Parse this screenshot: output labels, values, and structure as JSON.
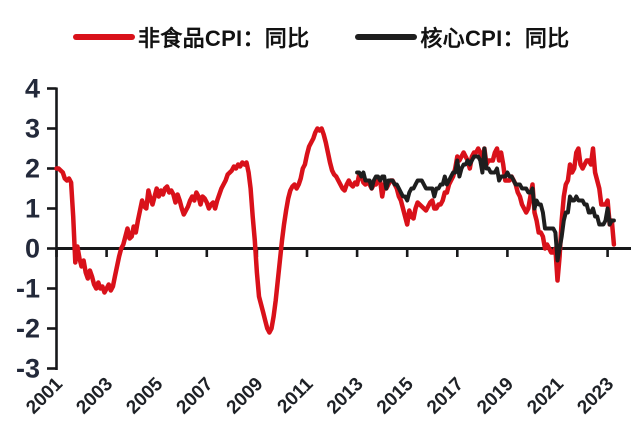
{
  "legend": {
    "position": "top",
    "items": [
      {
        "label": "非食品CPI：同比",
        "color": "#d9111a"
      },
      {
        "label": "核心CPI：同比",
        "color": "#1e1e1e"
      }
    ]
  },
  "chart_data": {
    "type": "line",
    "title": "",
    "xlabel": "",
    "ylabel": "",
    "grid": false,
    "legend_position": "top",
    "x_axis": {
      "tick_years": [
        2001,
        2003,
        2005,
        2007,
        2009,
        2011,
        2013,
        2015,
        2017,
        2019,
        2021,
        2023
      ],
      "label_rotation_deg": -45,
      "min": 2001.0,
      "max": 2023.4
    },
    "y_axis": {
      "ticks": [
        4,
        3,
        2,
        1,
        0,
        -1,
        -2,
        -3
      ],
      "min": -3,
      "max": 4,
      "zero_line_is_x_axis": true
    },
    "colors": {
      "axis": "#17181a",
      "y_tick_label": "#23293a",
      "x_tick_label": "#1e2126"
    },
    "series": [
      {
        "name": "非食品CPI：同比",
        "color": "#d9111a",
        "frequency": "monthly",
        "start": "2001-01",
        "end": "2023-04",
        "values": [
          2.0,
          2.0,
          1.95,
          1.9,
          1.75,
          1.7,
          1.75,
          1.65,
          0.8,
          -0.35,
          0.05,
          -0.25,
          -0.45,
          -0.3,
          -0.6,
          -0.75,
          -0.55,
          -0.7,
          -0.9,
          -1.0,
          -0.85,
          -1.0,
          -0.95,
          -1.1,
          -1.0,
          -0.9,
          -1.05,
          -0.95,
          -0.7,
          -0.45,
          -0.2,
          0.0,
          0.1,
          0.3,
          0.5,
          0.25,
          0.3,
          0.55,
          0.4,
          0.7,
          0.95,
          1.2,
          1.05,
          1.0,
          1.45,
          1.25,
          1.1,
          1.3,
          1.5,
          1.3,
          1.45,
          1.35,
          1.5,
          1.55,
          1.4,
          1.45,
          1.35,
          1.15,
          1.35,
          1.2,
          1.0,
          0.85,
          0.95,
          1.05,
          1.2,
          1.3,
          1.2,
          1.4,
          1.3,
          1.1,
          1.3,
          1.25,
          1.15,
          1.0,
          1.1,
          1.15,
          1.0,
          1.2,
          1.35,
          1.5,
          1.6,
          1.7,
          1.85,
          1.9,
          1.95,
          2.05,
          2.0,
          2.1,
          2.05,
          2.15,
          2.1,
          2.15,
          1.9,
          1.5,
          0.8,
          0.2,
          -0.6,
          -1.2,
          -1.4,
          -1.6,
          -1.8,
          -2.0,
          -2.1,
          -2.0,
          -1.7,
          -1.3,
          -0.8,
          -0.3,
          0.2,
          0.6,
          0.95,
          1.25,
          1.45,
          1.55,
          1.6,
          1.5,
          1.6,
          1.75,
          2.0,
          2.1,
          2.35,
          2.55,
          2.65,
          2.75,
          2.9,
          3.0,
          2.95,
          3.0,
          2.85,
          2.65,
          2.4,
          2.15,
          1.95,
          1.85,
          1.8,
          1.7,
          1.6,
          1.5,
          1.45,
          1.6,
          1.7,
          1.6,
          1.55,
          1.65,
          1.6,
          1.85,
          1.8,
          1.65,
          1.6,
          1.65,
          1.6,
          1.5,
          1.6,
          1.6,
          1.75,
          1.7,
          1.3,
          1.6,
          1.5,
          1.6,
          1.7,
          1.7,
          1.6,
          1.5,
          1.3,
          1.2,
          1.0,
          0.8,
          0.6,
          0.95,
          0.8,
          0.75,
          1.0,
          1.15,
          1.1,
          1.05,
          1.0,
          0.95,
          1.05,
          1.15,
          1.2,
          1.0,
          1.0,
          1.1,
          1.1,
          1.2,
          1.4,
          1.4,
          1.6,
          1.7,
          1.8,
          2.0,
          2.3,
          2.2,
          2.3,
          2.4,
          2.3,
          2.2,
          2.0,
          2.3,
          2.4,
          2.4,
          2.5,
          2.4,
          2.0,
          2.5,
          2.1,
          2.2,
          2.2,
          2.2,
          2.4,
          2.5,
          2.2,
          2.4,
          2.1,
          1.7,
          1.7,
          1.7,
          1.8,
          1.7,
          1.6,
          1.4,
          1.3,
          1.1,
          1.0,
          0.9,
          1.0,
          1.3,
          1.6,
          0.9,
          0.7,
          0.4,
          0.4,
          0.3,
          0.0,
          0.1,
          0.0,
          -0.1,
          -0.1,
          0.0,
          -0.8,
          -0.2,
          0.7,
          1.3,
          1.6,
          1.7,
          2.1,
          1.9,
          2.0,
          2.4,
          2.5,
          2.1,
          2.0,
          2.1,
          2.2,
          2.2,
          2.1,
          2.5,
          1.9,
          1.7,
          1.5,
          1.1,
          1.1,
          1.1,
          1.2,
          0.6,
          0.7,
          0.1
        ]
      },
      {
        "name": "核心CPI：同比",
        "color": "#1e1e1e",
        "frequency": "monthly",
        "start": "2013-01",
        "end": "2023-04",
        "values": [
          1.9,
          1.9,
          1.8,
          1.9,
          1.7,
          1.7,
          1.7,
          1.5,
          1.7,
          1.8,
          1.8,
          1.7,
          1.8,
          1.8,
          1.5,
          1.7,
          1.7,
          1.7,
          1.6,
          1.6,
          1.5,
          1.4,
          1.3,
          1.3,
          1.2,
          1.4,
          1.5,
          1.5,
          1.6,
          1.7,
          1.7,
          1.7,
          1.6,
          1.5,
          1.5,
          1.5,
          1.5,
          1.3,
          1.5,
          1.5,
          1.6,
          1.6,
          1.8,
          1.6,
          1.7,
          1.8,
          1.9,
          1.9,
          2.2,
          1.8,
          2.0,
          2.1,
          2.1,
          2.2,
          2.1,
          2.2,
          2.3,
          2.3,
          2.3,
          2.2,
          1.9,
          2.5,
          2.0,
          2.0,
          1.9,
          1.9,
          1.9,
          2.0,
          1.7,
          1.8,
          1.8,
          1.8,
          1.9,
          1.8,
          1.8,
          1.7,
          1.6,
          1.6,
          1.6,
          1.5,
          1.5,
          1.5,
          1.4,
          1.4,
          1.5,
          1.0,
          1.2,
          1.1,
          1.1,
          0.9,
          0.5,
          0.5,
          0.5,
          0.5,
          0.5,
          0.4,
          -0.3,
          0.0,
          0.3,
          0.7,
          0.9,
          0.9,
          1.3,
          1.2,
          1.2,
          1.3,
          1.2,
          1.2,
          1.2,
          1.1,
          1.1,
          0.9,
          0.9,
          1.0,
          0.8,
          0.8,
          0.6,
          0.6,
          0.6,
          0.7,
          1.0,
          0.6,
          0.7,
          0.7
        ]
      }
    ]
  }
}
